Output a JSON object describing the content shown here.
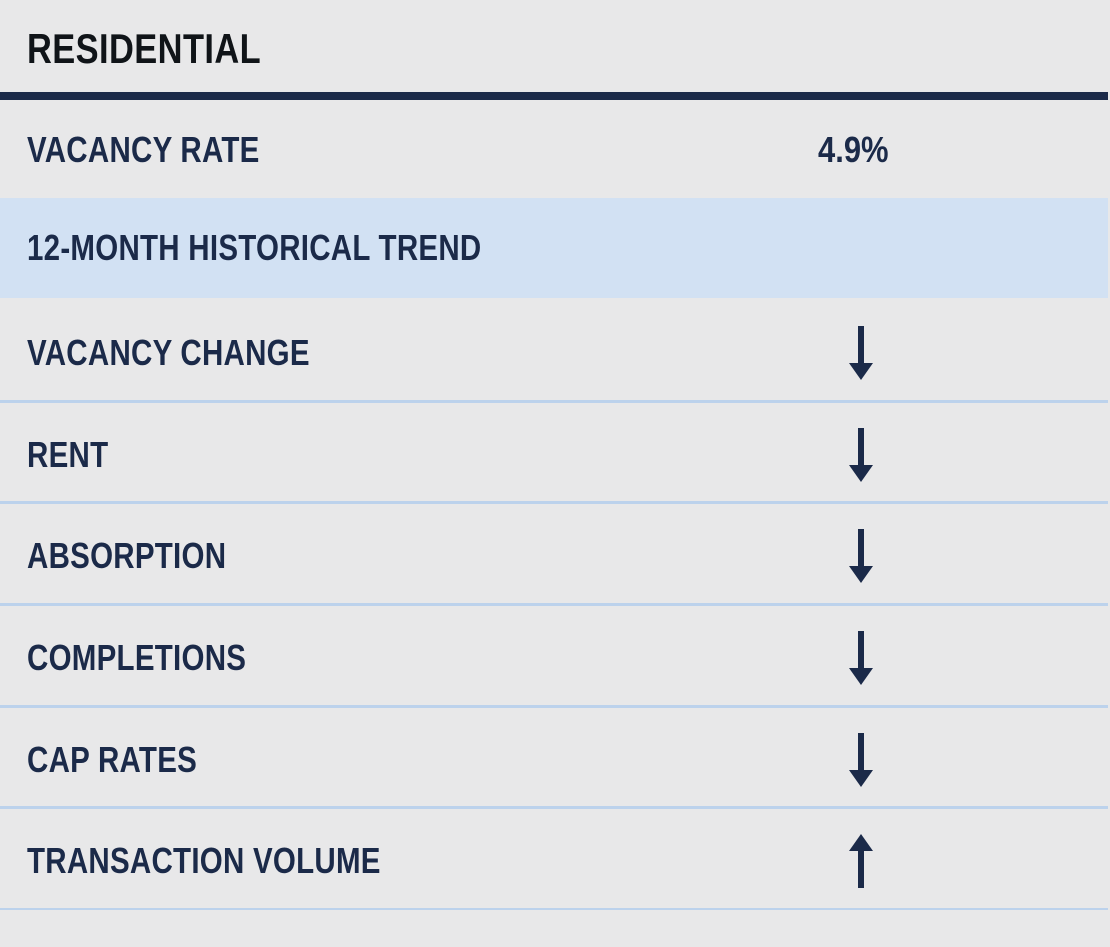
{
  "header": {
    "title": "RESIDENTIAL"
  },
  "vacancy_rate": {
    "label": "VACANCY RATE",
    "value": "4.9%"
  },
  "trend_section": {
    "title": "12-MONTH HISTORICAL TREND"
  },
  "trends": [
    {
      "label": "VACANCY CHANGE",
      "direction": "down",
      "icon": "arrow-down-icon"
    },
    {
      "label": "RENT",
      "direction": "down",
      "icon": "arrow-down-icon"
    },
    {
      "label": "ABSORPTION",
      "direction": "down",
      "icon": "arrow-down-icon"
    },
    {
      "label": "COMPLETIONS",
      "direction": "down",
      "icon": "arrow-down-icon"
    },
    {
      "label": "CAP RATES",
      "direction": "down",
      "icon": "arrow-down-icon"
    },
    {
      "label": "TRANSACTION VOLUME",
      "direction": "up",
      "icon": "arrow-up-icon"
    }
  ],
  "colors": {
    "background": "#e8e8e9",
    "navy": "#1b2a49",
    "highlight": "#d2e1f3",
    "divider": "#bcd2ec"
  }
}
